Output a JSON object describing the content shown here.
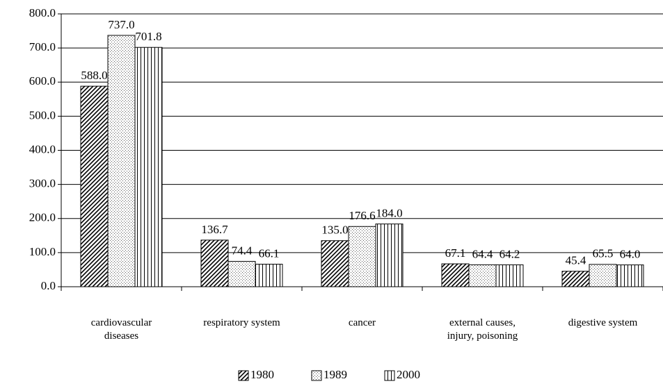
{
  "chart_data": {
    "type": "bar",
    "categories": [
      "cardiovascular diseases",
      "respiratory system",
      "cancer",
      "external causes, injury, poisoning",
      "digestive system"
    ],
    "series": [
      {
        "name": "1980",
        "pattern": "diagonal",
        "color": "#000000",
        "values": [
          588,
          136.7,
          135,
          67.1,
          45.4
        ],
        "value_labels": [
          "588.0",
          "136.7",
          "135.0",
          "67.1",
          "45.4"
        ]
      },
      {
        "name": "1989",
        "pattern": "dots",
        "color": "#000000",
        "values": [
          737,
          74.4,
          176.6,
          64.4,
          65.5
        ],
        "value_labels": [
          "737.0",
          "74.4",
          "176.6",
          "64.4",
          "65.5"
        ]
      },
      {
        "name": "2000",
        "pattern": "vertical",
        "color": "#000000",
        "values": [
          701.8,
          66.1,
          184,
          64.2,
          64
        ],
        "value_labels": [
          "701.8",
          "66.1",
          "184.0",
          "64.2",
          "64.0"
        ]
      }
    ],
    "ylim": [
      0,
      800
    ],
    "yticks": [
      {
        "value": 0,
        "label": "0.0"
      },
      {
        "value": 100,
        "label": "100.0"
      },
      {
        "value": 200,
        "label": "200.0"
      },
      {
        "value": 300,
        "label": "300.0"
      },
      {
        "value": 400,
        "label": "400.0"
      },
      {
        "value": 500,
        "label": "500.0"
      },
      {
        "value": 600,
        "label": "600.0"
      },
      {
        "value": 700,
        "label": "700.0"
      },
      {
        "value": 800,
        "label": "800.0"
      }
    ],
    "grid": true,
    "legend": "bottom"
  }
}
